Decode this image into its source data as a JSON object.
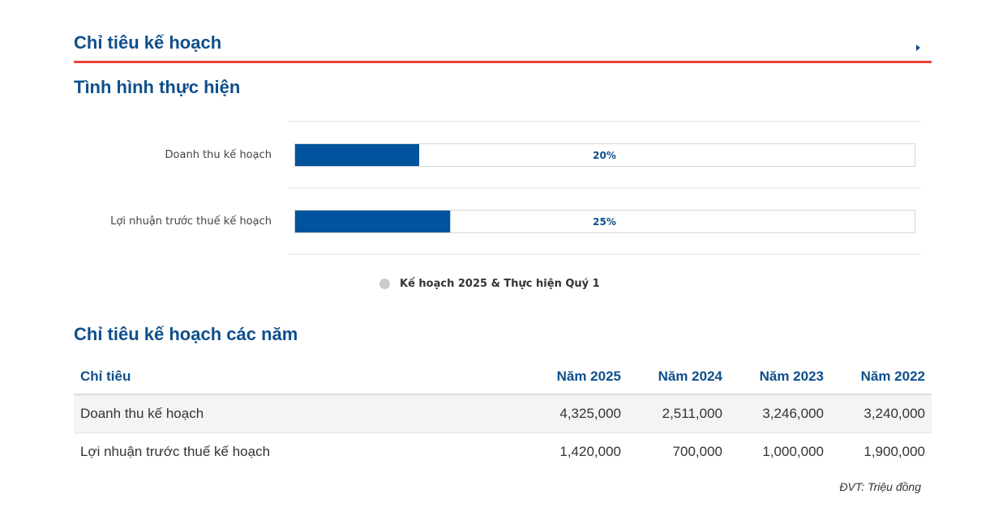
{
  "header": {
    "title": "Chỉ tiêu kế hoạch"
  },
  "progress": {
    "title": "Tình hình thực hiện"
  },
  "chart_data": {
    "type": "bar",
    "orientation": "horizontal",
    "categories": [
      "Doanh thu kế hoạch",
      "Lợi nhuận trước thuế kế hoạch"
    ],
    "series": [
      {
        "name": "Kế hoạch 2025 & Thực hiện Quý 1",
        "values": [
          20,
          25
        ],
        "labels": [
          "20%",
          "25%"
        ]
      }
    ],
    "xlim": [
      0,
      100
    ],
    "title": "",
    "xlabel": "",
    "ylabel": "",
    "legend": "bottom",
    "grid": true,
    "colors": {
      "bar": "#00539c",
      "track": "#ffffff",
      "legend_marker": "#cccccc"
    }
  },
  "table": {
    "title": "Chỉ tiêu kế hoạch các năm",
    "columns": [
      "Chỉ tiêu",
      "Năm 2025",
      "Năm 2024",
      "Năm 2023",
      "Năm 2022"
    ],
    "rows": [
      {
        "name": "Doanh thu kế hoạch",
        "values": [
          "4,325,000",
          "2,511,000",
          "3,246,000",
          "3,240,000"
        ]
      },
      {
        "name": "Lợi nhuận trước thuế kế hoạch",
        "values": [
          "1,420,000",
          "700,000",
          "1,000,000",
          "1,900,000"
        ]
      }
    ],
    "unit_note": "ĐVT: Triệu đồng"
  },
  "colors": {
    "accent": "#0e4f8c",
    "divider": "#e8443a"
  }
}
